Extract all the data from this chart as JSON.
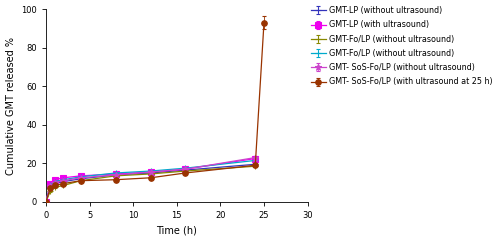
{
  "time_points": [
    0,
    0.5,
    1,
    2,
    4,
    8,
    12,
    16,
    24
  ],
  "series": [
    {
      "label": "GMT-LP (without ultrasound)",
      "color": "#3333bb",
      "marker": "+",
      "markersize": 5,
      "linestyle": "-",
      "linewidth": 0.9,
      "values": [
        0,
        7.0,
        9.5,
        10.5,
        12.0,
        14.0,
        15.0,
        16.5,
        19.5
      ],
      "errors": [
        0,
        0.4,
        0.4,
        0.4,
        0.4,
        0.4,
        0.4,
        0.4,
        0.8
      ]
    },
    {
      "label": "GMT-LP (with ultrasound)",
      "color": "#ee00ee",
      "marker": "s",
      "markersize": 4,
      "linestyle": "-",
      "linewidth": 0.9,
      "values": [
        0,
        9.5,
        11.5,
        12.5,
        13.5,
        14.5,
        15.5,
        17.0,
        22.5
      ],
      "errors": [
        0,
        0.5,
        0.5,
        0.5,
        0.5,
        0.5,
        0.5,
        0.5,
        1.0
      ]
    },
    {
      "label": "GMT-Fo/LP (without ultrasound)",
      "color": "#888800",
      "marker": "+",
      "markersize": 5,
      "linestyle": "-",
      "linewidth": 0.9,
      "values": [
        0,
        5.5,
        7.5,
        8.5,
        11.0,
        13.5,
        14.5,
        16.0,
        18.5
      ],
      "errors": [
        0,
        0.3,
        0.3,
        0.3,
        0.3,
        0.3,
        0.3,
        0.3,
        0.6
      ]
    },
    {
      "label": "GMT-Fo/LP (without ultrasound)",
      "color": "#00aacc",
      "marker": "+",
      "markersize": 5,
      "linestyle": "-",
      "linewidth": 0.9,
      "values": [
        0,
        8.5,
        10.5,
        11.5,
        13.0,
        15.0,
        16.0,
        17.5,
        21.5
      ],
      "errors": [
        0,
        0.4,
        0.4,
        0.4,
        0.4,
        0.4,
        0.4,
        0.4,
        0.8
      ]
    },
    {
      "label": "GMT- SoS-Fo/LP (without ultrasound)",
      "color": "#cc44cc",
      "marker": "*",
      "markersize": 5,
      "linestyle": "-",
      "linewidth": 0.9,
      "values": [
        0,
        8.0,
        10.0,
        11.0,
        12.5,
        14.0,
        15.5,
        17.0,
        23.0
      ],
      "errors": [
        0,
        0.4,
        0.4,
        0.4,
        0.4,
        0.4,
        0.4,
        0.4,
        0.8
      ]
    },
    {
      "label": "GMT- SoS-Fo/LP (with ultrasound at 25 h)",
      "color": "#993300",
      "marker": "o",
      "markersize": 4,
      "linestyle": "-",
      "linewidth": 0.9,
      "values": [
        0,
        7.0,
        8.5,
        9.5,
        11.0,
        11.5,
        12.5,
        15.0,
        19.0
      ],
      "errors": [
        0,
        0.3,
        0.3,
        0.3,
        0.3,
        0.3,
        0.3,
        0.3,
        0.5
      ],
      "extra_point": [
        25,
        93.0
      ],
      "extra_error": 3.5
    }
  ],
  "xlabel": "Time (h)",
  "ylabel": "Cumulative GMT released %",
  "xlim": [
    0,
    30
  ],
  "ylim": [
    0,
    100
  ],
  "xticks": [
    0,
    5,
    10,
    15,
    20,
    25,
    30
  ],
  "yticks": [
    0,
    20,
    40,
    60,
    80,
    100
  ],
  "figsize": [
    5.0,
    2.41
  ],
  "dpi": 100,
  "tick_fontsize": 6,
  "label_fontsize": 7,
  "legend_fontsize": 5.8
}
